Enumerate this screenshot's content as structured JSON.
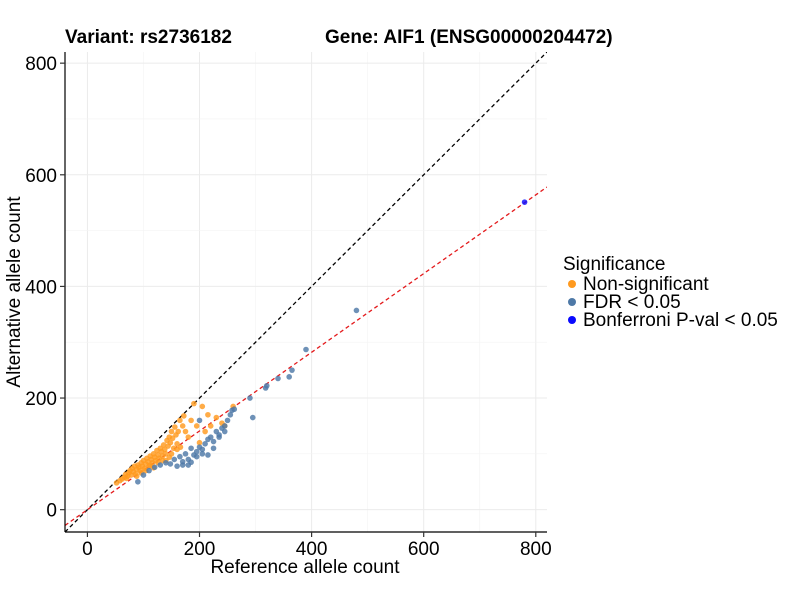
{
  "chart_data": {
    "type": "scatter",
    "title_left": "Variant: rs2736182",
    "title_right": "Gene: AIF1 (ENSG00000204472)",
    "xlabel": "Reference allele count",
    "ylabel": "Alternative allele count",
    "xlim": [
      -40,
      820
    ],
    "ylim": [
      -40,
      820
    ],
    "xticks": [
      0,
      200,
      400,
      600,
      800
    ],
    "yticks": [
      0,
      200,
      400,
      600,
      800
    ],
    "grid": true,
    "legend_title": "Significance",
    "legend_position": "right",
    "reference_lines": [
      {
        "name": "identity",
        "slope": 1.0,
        "intercept": 0,
        "color": "#000000",
        "dash": "4,3"
      },
      {
        "name": "fit",
        "slope": 0.705,
        "intercept": 0,
        "color": "#e41a1c",
        "dash": "4,3"
      }
    ],
    "series": [
      {
        "name": "Non-significant",
        "color": "#ff9a1f",
        "points": [
          [
            52,
            48
          ],
          [
            58,
            52
          ],
          [
            62,
            55
          ],
          [
            66,
            58
          ],
          [
            68,
            63
          ],
          [
            70,
            56
          ],
          [
            72,
            60
          ],
          [
            74,
            66
          ],
          [
            76,
            70
          ],
          [
            78,
            62
          ],
          [
            80,
            74
          ],
          [
            82,
            68
          ],
          [
            84,
            78
          ],
          [
            86,
            64
          ],
          [
            88,
            72
          ],
          [
            90,
            80
          ],
          [
            92,
            76
          ],
          [
            94,
            70
          ],
          [
            96,
            84
          ],
          [
            98,
            78
          ],
          [
            100,
            88
          ],
          [
            102,
            74
          ],
          [
            104,
            82
          ],
          [
            106,
            92
          ],
          [
            108,
            86
          ],
          [
            110,
            78
          ],
          [
            112,
            96
          ],
          [
            114,
            90
          ],
          [
            116,
            84
          ],
          [
            118,
            100
          ],
          [
            120,
            94
          ],
          [
            122,
            88
          ],
          [
            124,
            106
          ],
          [
            126,
            98
          ],
          [
            128,
            92
          ],
          [
            130,
            110
          ],
          [
            132,
            104
          ],
          [
            134,
            96
          ],
          [
            136,
            116
          ],
          [
            138,
            108
          ],
          [
            140,
            100
          ],
          [
            142,
            124
          ],
          [
            144,
            114
          ],
          [
            146,
            130
          ],
          [
            148,
            120
          ],
          [
            150,
            140
          ],
          [
            152,
            128
          ],
          [
            154,
            110
          ],
          [
            156,
            148
          ],
          [
            158,
            134
          ],
          [
            160,
            118
          ],
          [
            162,
            140
          ],
          [
            165,
            160
          ],
          [
            170,
            150
          ],
          [
            172,
            168
          ],
          [
            175,
            140
          ],
          [
            180,
            130
          ],
          [
            185,
            160
          ],
          [
            190,
            190
          ],
          [
            195,
            150
          ],
          [
            200,
            120
          ],
          [
            205,
            185
          ],
          [
            210,
            140
          ],
          [
            215,
            170
          ],
          [
            220,
            150
          ],
          [
            230,
            165
          ],
          [
            240,
            155
          ],
          [
            245,
            150
          ],
          [
            260,
            185
          ],
          [
            118,
            75
          ],
          [
            126,
            84
          ],
          [
            134,
            88
          ],
          [
            140,
            88
          ],
          [
            146,
            94
          ],
          [
            88,
            60
          ],
          [
            96,
            66
          ],
          [
            104,
            70
          ],
          [
            112,
            80
          ],
          [
            150,
            100
          ],
          [
            160,
            108
          ],
          [
            166,
            112
          ]
        ]
      },
      {
        "name": "FDR < 0.05",
        "color": "#4e79a7",
        "points": [
          [
            90,
            50
          ],
          [
            100,
            62
          ],
          [
            110,
            70
          ],
          [
            120,
            76
          ],
          [
            130,
            80
          ],
          [
            140,
            84
          ],
          [
            148,
            82
          ],
          [
            155,
            90
          ],
          [
            160,
            78
          ],
          [
            165,
            95
          ],
          [
            170,
            86
          ],
          [
            175,
            100
          ],
          [
            180,
            90
          ],
          [
            185,
            110
          ],
          [
            190,
            98
          ],
          [
            195,
            104
          ],
          [
            200,
            112
          ],
          [
            205,
            108
          ],
          [
            210,
            118
          ],
          [
            215,
            126
          ],
          [
            220,
            130
          ],
          [
            225,
            122
          ],
          [
            230,
            140
          ],
          [
            235,
            134
          ],
          [
            240,
            146
          ],
          [
            245,
            150
          ],
          [
            250,
            160
          ],
          [
            255,
            170
          ],
          [
            258,
            178
          ],
          [
            262,
            180
          ],
          [
            170,
            80
          ],
          [
            180,
            80
          ],
          [
            185,
            85
          ],
          [
            195,
            95
          ],
          [
            205,
            100
          ],
          [
            215,
            98
          ],
          [
            225,
            110
          ],
          [
            235,
            130
          ],
          [
            245,
            140
          ],
          [
            290,
            200
          ],
          [
            295,
            165
          ],
          [
            318,
            218
          ],
          [
            320,
            222
          ],
          [
            340,
            235
          ],
          [
            360,
            238
          ],
          [
            365,
            250
          ],
          [
            390,
            287
          ],
          [
            480,
            357
          ],
          [
            200,
            160
          ]
        ]
      },
      {
        "name": "Bonferroni P-val < 0.05",
        "color": "#0a0aff",
        "points": [
          [
            780,
            551
          ]
        ]
      }
    ]
  }
}
